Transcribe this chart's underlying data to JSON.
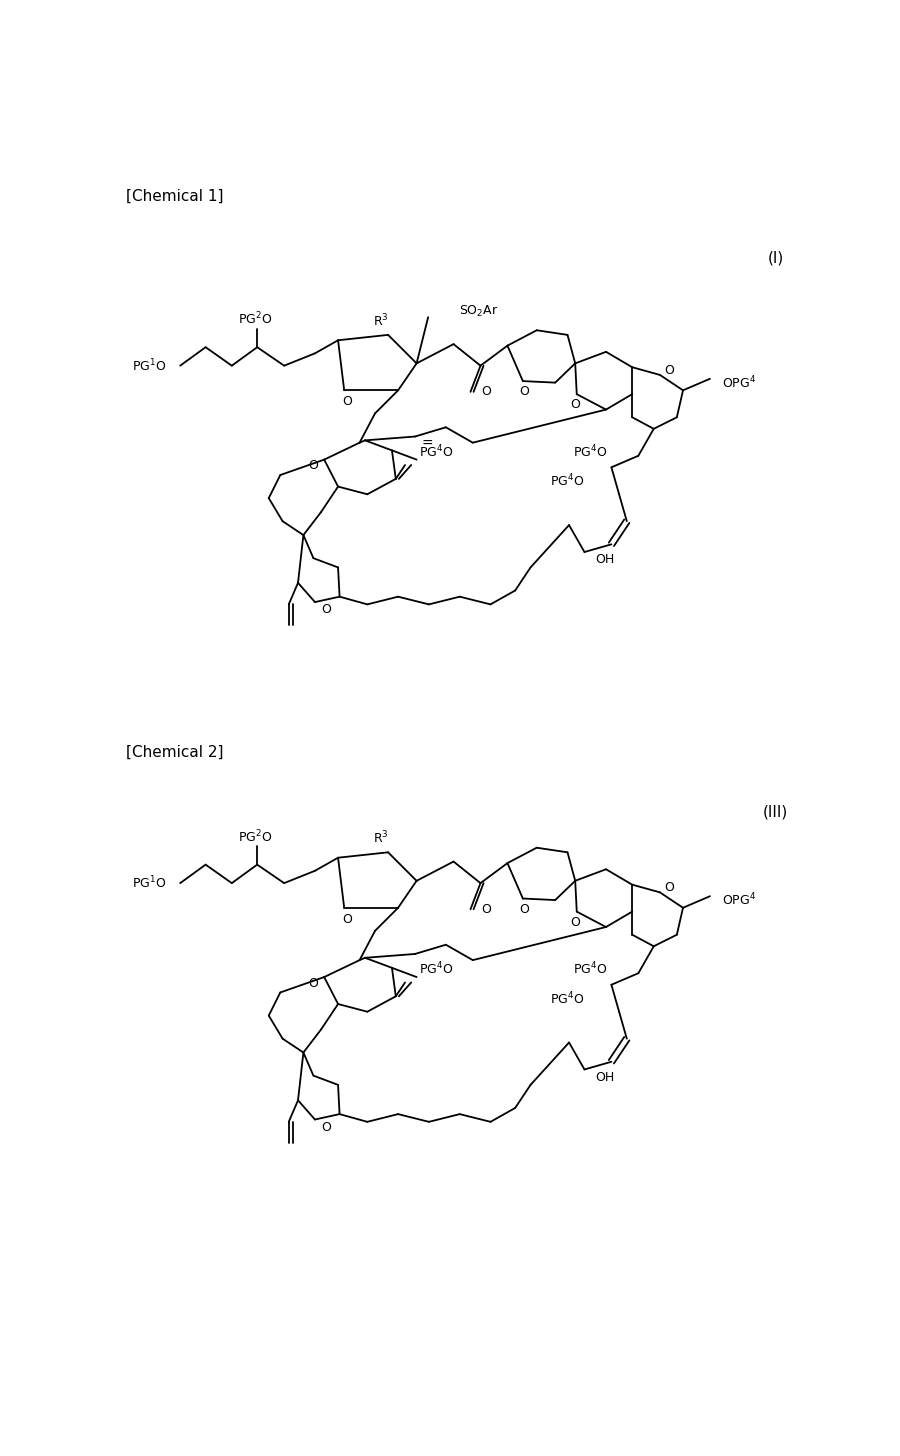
{
  "title1": "[Chemical 1]",
  "title2": "[Chemical 2]",
  "label1": "(I)",
  "label2": "(III)",
  "bg_color": "#ffffff",
  "line_color": "#000000",
  "text_color": "#000000",
  "lw": 1.3
}
